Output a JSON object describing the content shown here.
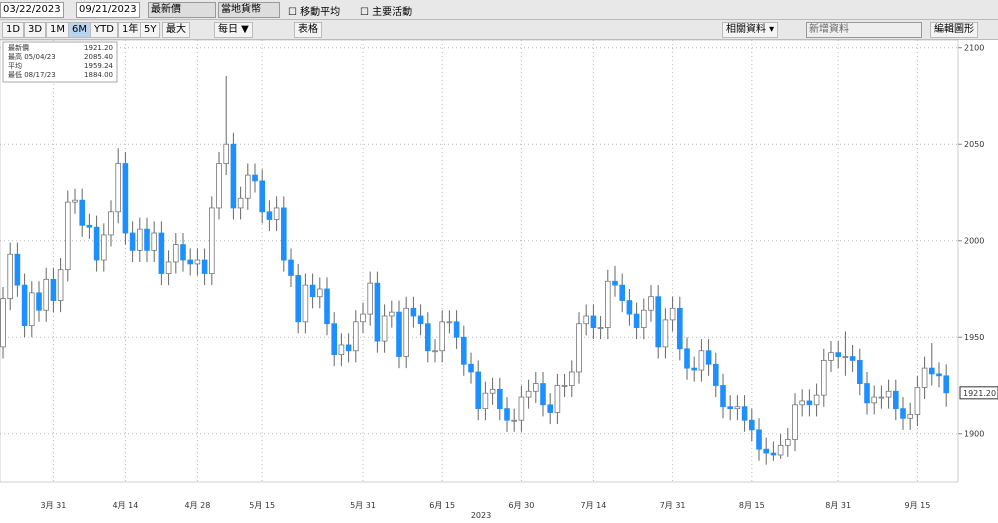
{
  "toolbar": {
    "start_date": "03/22/2023",
    "end_date": "09/21/2023",
    "field": "最新價",
    "currency": "當地貨幣",
    "moving_average": "移動平均",
    "events": "主要活動",
    "periods": [
      "1D",
      "3D",
      "1M",
      "6M",
      "YTD",
      "1年",
      "5Y",
      "最大"
    ],
    "frequency": "每日 ▼",
    "table": "表格",
    "related": "相關資料 ▾",
    "add_data": "新增資料",
    "edit_chart": "編輯圖形"
  },
  "chart_data": {
    "type": "candlestick",
    "x_label": "2023",
    "stats": {
      "last": {
        "name": "最新價",
        "value": "1921.20"
      },
      "high": {
        "name": "最高 05/04/23",
        "value": "2085.40"
      },
      "average": {
        "name": "平均",
        "value": "1959.24"
      },
      "low": {
        "name": "最低 08/17/23",
        "value": "1884.00"
      }
    },
    "categories": [
      null,
      null,
      null,
      null,
      null,
      null,
      null,
      "3月 31",
      null,
      null,
      null,
      null,
      null,
      null,
      null,
      null,
      null,
      "4月 14",
      null,
      null,
      null,
      null,
      null,
      null,
      null,
      null,
      null,
      "4月 28",
      null,
      null,
      null,
      null,
      null,
      null,
      null,
      null,
      "5月 15",
      null,
      null,
      null,
      null,
      null,
      null,
      null,
      null,
      null,
      null,
      null,
      null,
      null,
      "5月 31",
      null,
      null,
      null,
      null,
      null,
      null,
      null,
      null,
      null,
      null,
      "6月 15",
      null,
      null,
      null,
      null,
      null,
      null,
      null,
      null,
      null,
      null,
      "6月 30",
      null,
      null,
      null,
      null,
      null,
      null,
      null,
      null,
      null,
      "7月 14",
      null,
      null,
      null,
      null,
      null,
      null,
      null,
      null,
      null,
      null,
      "7月 31",
      null,
      null,
      null,
      null,
      null,
      null,
      null,
      null,
      null,
      null,
      "8月 15",
      null,
      null,
      null,
      null,
      null,
      null,
      null,
      null,
      null,
      null,
      null,
      "8月 31",
      null,
      null,
      null,
      null,
      null,
      null,
      null,
      null,
      null,
      null,
      "9月 15",
      null,
      null,
      null,
      null
    ],
    "open": [
      1945,
      1970,
      1993,
      1977,
      1956,
      1973,
      1964,
      1980,
      1969,
      1985,
      2020,
      2021,
      2008,
      2007,
      1990,
      2003,
      2015,
      2040,
      2004,
      1995,
      2006,
      1995,
      2004,
      1983,
      1989,
      1998,
      1990,
      1988,
      1990,
      1983,
      2017,
      2040,
      2050,
      2017,
      2022,
      2034,
      2031,
      2015,
      2011,
      2017,
      1990,
      1982,
      1958,
      1977,
      1971,
      1975,
      1957,
      1941,
      1946,
      1943,
      1958,
      1962,
      1978,
      1948,
      1961,
      1963,
      1940,
      1965,
      1961,
      1957,
      1943,
      1943,
      1958,
      1958,
      1950,
      1936,
      1932,
      1913,
      1921,
      1923,
      1913,
      1907,
      1907,
      1919,
      1922,
      1926,
      1915,
      1911,
      1925,
      1925,
      1932,
      1957,
      1961,
      1955,
      1955,
      1979,
      1977,
      1969,
      1962,
      1955,
      1964,
      1971,
      1945,
      1959,
      1965,
      1944,
      1934,
      1933,
      1943,
      1936,
      1925,
      1914,
      1913,
      1914,
      1907,
      1902,
      1892,
      1890,
      1889,
      1894,
      1897,
      1915,
      1917,
      1915,
      1920,
      1938,
      1942,
      1940,
      1940,
      1938,
      1926,
      1916,
      1919,
      1919,
      1922,
      1913,
      1908,
      1910,
      1924,
      1934,
      1931,
      1930
    ],
    "high": [
      1976,
      1999,
      1999,
      1983,
      1979,
      1979,
      1986,
      1986,
      1991,
      2026,
      2027,
      2027,
      2014,
      2013,
      2009,
      2021,
      2048,
      2046,
      2010,
      2012,
      2012,
      2010,
      2010,
      1995,
      2004,
      2004,
      1996,
      1996,
      1996,
      2023,
      2046,
      2085.4,
      2056,
      2028,
      2040,
      2040,
      2037,
      2021,
      2023,
      2023,
      1996,
      1988,
      1983,
      1983,
      1981,
      1981,
      1963,
      1952,
      1952,
      1964,
      1968,
      1984,
      1984,
      1967,
      1969,
      1969,
      1971,
      1971,
      1967,
      1963,
      1949,
      1964,
      1964,
      1964,
      1956,
      1942,
      1938,
      1927,
      1929,
      1929,
      1919,
      1913,
      1925,
      1928,
      1932,
      1932,
      1921,
      1931,
      1931,
      1938,
      1963,
      1967,
      1967,
      1961,
      1985,
      1987,
      1983,
      1975,
      1968,
      1970,
      1977,
      1977,
      1965,
      1971,
      1971,
      1950,
      1940,
      1949,
      1949,
      1942,
      1931,
      1920,
      1920,
      1920,
      1913,
      1908,
      1898,
      1896,
      1900,
      1903,
      1921,
      1923,
      1923,
      1926,
      1944,
      1948,
      1948,
      1953,
      1946,
      1944,
      1932,
      1925,
      1925,
      1928,
      1928,
      1919,
      1916,
      1930,
      1940,
      1947,
      1937,
      1936
    ],
    "low": [
      1939,
      1964,
      1971,
      1950,
      1950,
      1958,
      1958,
      1963,
      1963,
      1979,
      2014,
      2002,
      2001,
      1984,
      1984,
      1997,
      2009,
      1998,
      1989,
      1989,
      1989,
      1989,
      1977,
      1977,
      1983,
      1984,
      1982,
      1982,
      1977,
      1977,
      2011,
      2034,
      2011,
      2011,
      2016,
      2025,
      2009,
      2005,
      2005,
      1984,
      1976,
      1952,
      1952,
      1965,
      1965,
      1951,
      1935,
      1935,
      1937,
      1937,
      1952,
      1956,
      1942,
      1942,
      1955,
      1934,
      1934,
      1955,
      1951,
      1937,
      1937,
      1937,
      1952,
      1944,
      1930,
      1926,
      1907,
      1907,
      1915,
      1907,
      1901,
      1901,
      1901,
      1913,
      1916,
      1909,
      1905,
      1905,
      1919,
      1919,
      1926,
      1951,
      1949,
      1949,
      1949,
      1971,
      1963,
      1956,
      1949,
      1949,
      1958,
      1939,
      1939,
      1953,
      1938,
      1928,
      1927,
      1927,
      1930,
      1919,
      1908,
      1907,
      1907,
      1901,
      1896,
      1886,
      1884,
      1886,
      1887,
      1888,
      1891,
      1909,
      1909,
      1909,
      1914,
      1932,
      1934,
      1930,
      1932,
      1920,
      1910,
      1910,
      1913,
      1913,
      1907,
      1902,
      1902,
      1904,
      1918,
      1925,
      1924,
      1914
    ],
    "close": [
      1970,
      1993,
      1977,
      1956,
      1973,
      1964,
      1980,
      1969,
      1985,
      2020,
      2021,
      2008,
      2007,
      1990,
      2003,
      2015,
      2040,
      2004,
      1995,
      2006,
      1995,
      2004,
      1983,
      1989,
      1998,
      1990,
      1988,
      1990,
      1983,
      2017,
      2040,
      2050,
      2017,
      2022,
      2034,
      2031,
      2015,
      2011,
      2017,
      1990,
      1982,
      1958,
      1977,
      1971,
      1975,
      1957,
      1941,
      1946,
      1943,
      1958,
      1962,
      1978,
      1948,
      1961,
      1963,
      1940,
      1965,
      1961,
      1957,
      1943,
      1943,
      1958,
      1958,
      1950,
      1936,
      1932,
      1913,
      1921,
      1923,
      1913,
      1907,
      1907,
      1919,
      1922,
      1926,
      1915,
      1911,
      1925,
      1925,
      1932,
      1957,
      1961,
      1955,
      1955,
      1979,
      1977,
      1969,
      1962,
      1955,
      1964,
      1971,
      1945,
      1959,
      1965,
      1944,
      1934,
      1933,
      1943,
      1936,
      1925,
      1914,
      1913,
      1914,
      1907,
      1902,
      1892,
      1890,
      1889,
      1894,
      1897,
      1915,
      1917,
      1915,
      1920,
      1938,
      1942,
      1940,
      1940,
      1938,
      1926,
      1916,
      1919,
      1919,
      1922,
      1913,
      1908,
      1910,
      1924,
      1934,
      1931,
      1930,
      1921.2
    ],
    "up_color": "#ffffff",
    "down_color": "#1e8fff",
    "ylim": [
      1875,
      2104
    ],
    "yticks": [
      1900,
      1950,
      2000,
      2050,
      2100
    ],
    "grid": true
  }
}
